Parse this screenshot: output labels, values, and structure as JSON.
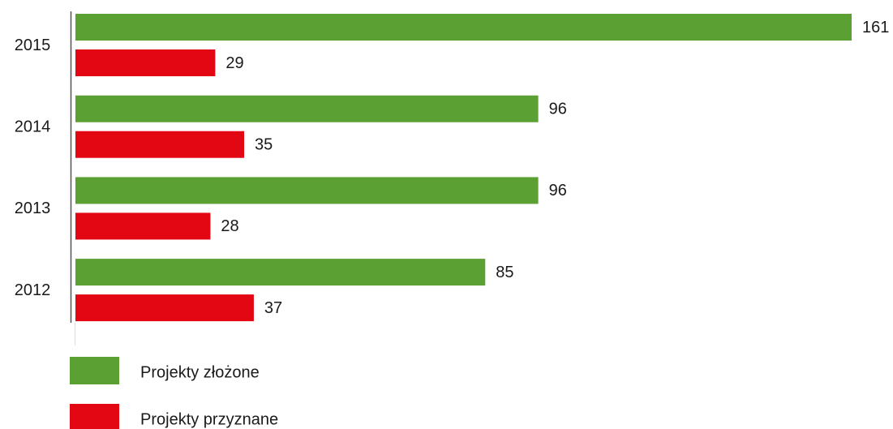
{
  "chart_data": {
    "type": "hbar",
    "categories": [
      "2015",
      "2014",
      "2013",
      "2012"
    ],
    "series": [
      {
        "name": "Projekty złożone",
        "color": "#5ba033",
        "values": [
          161,
          96,
          96,
          85
        ]
      },
      {
        "name": "Projekty przyznane",
        "color": "#e30613",
        "values": [
          29,
          35,
          28,
          37
        ]
      }
    ]
  }
}
